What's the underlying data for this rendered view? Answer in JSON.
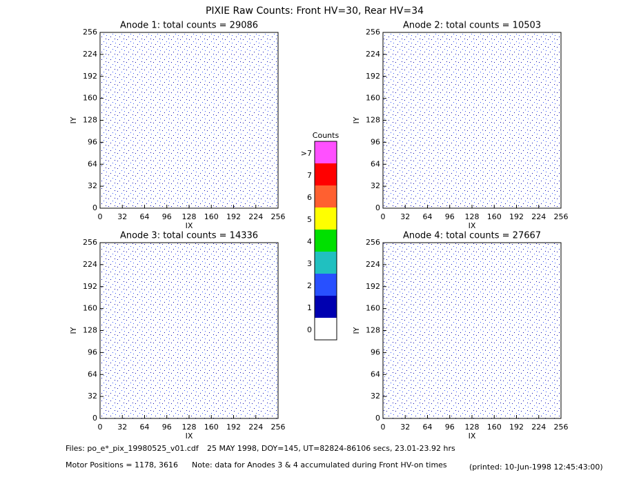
{
  "title": "PIXIE Raw Counts:  Front HV=30, Rear HV=34",
  "chart_data": [
    {
      "type": "heatmap",
      "title": "Anode 1: total counts = 29086",
      "x_label": "IX",
      "y_label": "IY",
      "xlim": [
        0,
        256
      ],
      "ylim": [
        0,
        256
      ],
      "xticks": [
        0,
        32,
        64,
        96,
        128,
        160,
        192,
        224,
        256
      ],
      "yticks": [
        0,
        32,
        64,
        96,
        128,
        160,
        192,
        224,
        256
      ]
    },
    {
      "type": "heatmap",
      "title": "Anode 2: total counts = 10503",
      "x_label": "IX",
      "y_label": "IY",
      "xlim": [
        0,
        256
      ],
      "ylim": [
        0,
        256
      ],
      "xticks": [
        0,
        32,
        64,
        96,
        128,
        160,
        192,
        224,
        256
      ],
      "yticks": [
        0,
        32,
        64,
        96,
        128,
        160,
        192,
        224,
        256
      ]
    },
    {
      "type": "heatmap",
      "title": "Anode 3: total counts = 14336",
      "x_label": "IX",
      "y_label": "IY",
      "xlim": [
        0,
        256
      ],
      "ylim": [
        0,
        256
      ],
      "xticks": [
        0,
        32,
        64,
        96,
        128,
        160,
        192,
        224,
        256
      ],
      "yticks": [
        0,
        32,
        64,
        96,
        128,
        160,
        192,
        224,
        256
      ]
    },
    {
      "type": "heatmap",
      "title": "Anode 4: total counts = 27667",
      "x_label": "IX",
      "y_label": "IY",
      "xlim": [
        0,
        256
      ],
      "ylim": [
        0,
        256
      ],
      "xticks": [
        0,
        32,
        64,
        96,
        128,
        160,
        192,
        224,
        256
      ],
      "yticks": [
        0,
        32,
        64,
        96,
        128,
        160,
        192,
        224,
        256
      ]
    }
  ],
  "colorbar": {
    "title": "Counts",
    "labels": [
      "0",
      "1",
      "2",
      "3",
      "4",
      "5",
      "6",
      "7",
      ">7"
    ],
    "colors": [
      "#ffffff",
      "#0000b0",
      "#2850ff",
      "#20c0c0",
      "#00e000",
      "#ffff00",
      "#ff6030",
      "#ff0000",
      "#ff50ff"
    ]
  },
  "footer": {
    "files": "Files: po_e*_pix_19980525_v01.cdf",
    "date": "25 MAY 1998, DOY=145, UT=82824-86106 secs, 23.01-23.92 hrs",
    "motor": "Motor Positions = 1178, 3616",
    "note": "Note: data for Anodes 3 & 4 accumulated during Front HV-on times",
    "printed": "(printed: 10-Jun-1998 12:45:43:00)"
  }
}
